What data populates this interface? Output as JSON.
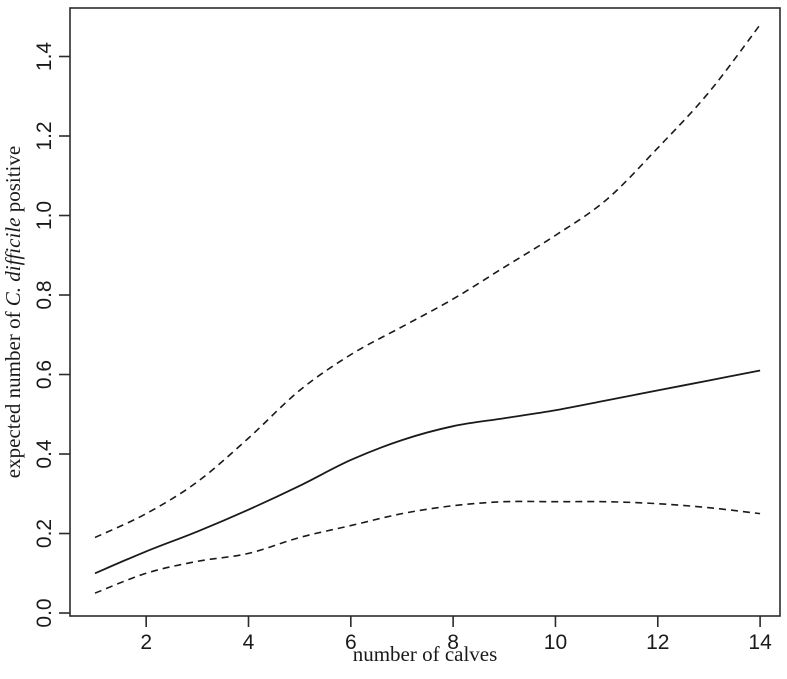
{
  "figure": {
    "background_color": "#ffffff",
    "line_color": "#1a1a1a",
    "frame_color": "#2b2b2b"
  },
  "chart_data": {
    "type": "line",
    "title": "",
    "xlabel": "number of calves",
    "ylabel_parts": {
      "prefix": "expected number of ",
      "italic": "C. difficile",
      "suffix": " positive"
    },
    "x": [
      1,
      2,
      3,
      4,
      5,
      6,
      7,
      8,
      9,
      10,
      11,
      12,
      13,
      14
    ],
    "series": [
      {
        "name": "fitted-expected-number",
        "style": "solid",
        "values": [
          0.1,
          0.155,
          0.205,
          0.26,
          0.32,
          0.385,
          0.435,
          0.47,
          0.49,
          0.51,
          0.535,
          0.56,
          0.585,
          0.61
        ]
      },
      {
        "name": "upper-95ci",
        "style": "dashed",
        "values": [
          0.19,
          0.25,
          0.33,
          0.44,
          0.56,
          0.65,
          0.72,
          0.79,
          0.87,
          0.95,
          1.04,
          1.17,
          1.31,
          1.48
        ]
      },
      {
        "name": "lower-95ci",
        "style": "dashed",
        "values": [
          0.05,
          0.1,
          0.13,
          0.15,
          0.19,
          0.22,
          0.25,
          0.27,
          0.28,
          0.28,
          0.28,
          0.275,
          0.265,
          0.25
        ]
      }
    ],
    "xlim": [
      0.511,
      14.389
    ],
    "ylim": [
      -0.0075,
      1.522
    ],
    "x_ticks": [
      "2",
      "4",
      "6",
      "8",
      "10",
      "12",
      "14"
    ],
    "y_ticks": [
      "0.0",
      "0.2",
      "0.4",
      "0.6",
      "0.8",
      "1.0",
      "1.2",
      "1.4"
    ],
    "grid": false,
    "legend": null
  }
}
